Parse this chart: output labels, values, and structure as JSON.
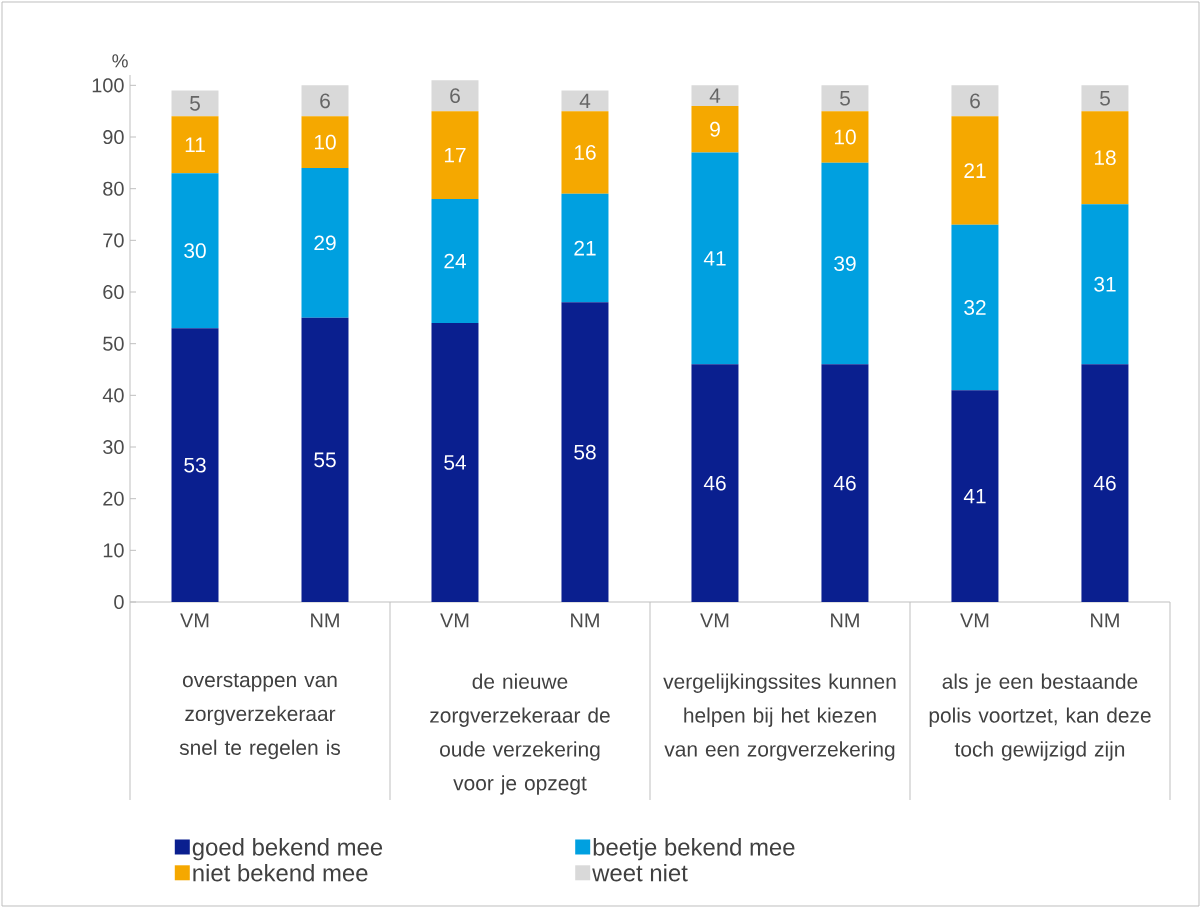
{
  "chart_data": {
    "type": "bar",
    "stacked": true,
    "ylabel": "%",
    "categories": [
      "VM",
      "NM",
      "VM",
      "NM",
      "VM",
      "NM",
      "VM",
      "NM"
    ],
    "series": [
      {
        "name": "goed bekend mee",
        "color": "#0a1f8f",
        "values": [
          53,
          55,
          54,
          58,
          46,
          46,
          41,
          46
        ]
      },
      {
        "name": "beetje bekend mee",
        "color": "#00a0e0",
        "values": [
          30,
          29,
          24,
          21,
          41,
          39,
          32,
          31
        ]
      },
      {
        "name": "niet bekend mee",
        "color": "#f5a800",
        "values": [
          11,
          10,
          17,
          16,
          9,
          10,
          21,
          18
        ]
      },
      {
        "name": "weet niet",
        "color": "#d9d9d9",
        "values": [
          5,
          6,
          6,
          4,
          4,
          5,
          6,
          5
        ]
      }
    ],
    "ylim": [
      0,
      102
    ],
    "yticks": [
      0,
      10,
      20,
      30,
      40,
      50,
      60,
      70,
      80,
      90,
      100
    ],
    "data_labels": true,
    "legend": "bottom",
    "annotations": [
      "overstappen van zorgverzekeraar snel te regelen is",
      "de nieuwe zorgverzekeraar de oude verzekering voor je opzegt",
      "vergelijkingssites kunnen helpen bij het kiezen van een zorgverzekering",
      "als je een bestaande polis voortzet, kan deze toch gewijzigd zijn"
    ]
  }
}
